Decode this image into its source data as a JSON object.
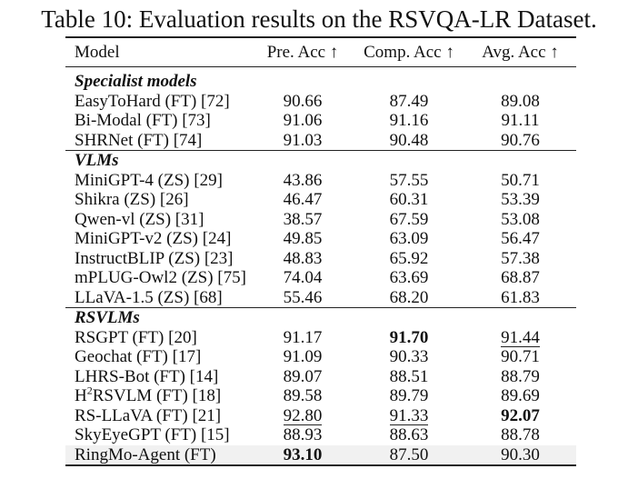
{
  "title": "Table 10: Evaluation results on the RSVQA-LR Dataset.",
  "columns": [
    "Model",
    "Pre. Acc ↑",
    "Comp. Acc ↑",
    "Avg. Acc ↑"
  ],
  "sections": [
    {
      "name": "Specialist models",
      "rows": [
        {
          "model": "EasyToHard (FT) [72]",
          "values": [
            "90.66",
            "87.49",
            "89.08"
          ]
        },
        {
          "model": "Bi-Modal (FT) [73]",
          "values": [
            "91.06",
            "91.16",
            "91.11"
          ]
        },
        {
          "model": "SHRNet (FT) [74]",
          "values": [
            "91.03",
            "90.48",
            "90.76"
          ]
        }
      ]
    },
    {
      "name": "VLMs",
      "rows": [
        {
          "model": "MiniGPT-4 (ZS) [29]",
          "values": [
            "43.86",
            "57.55",
            "50.71"
          ]
        },
        {
          "model": "Shikra (ZS) [26]",
          "values": [
            "46.47",
            "60.31",
            "53.39"
          ]
        },
        {
          "model": "Qwen-vl (ZS) [31]",
          "values": [
            "38.57",
            "67.59",
            "53.08"
          ]
        },
        {
          "model": "MiniGPT-v2 (ZS) [24]",
          "values": [
            "49.85",
            "63.09",
            "56.47"
          ]
        },
        {
          "model": "InstructBLIP (ZS) [23]",
          "values": [
            "48.83",
            "65.92",
            "57.38"
          ]
        },
        {
          "model": "mPLUG-Owl2 (ZS) [75]",
          "values": [
            "74.04",
            "63.69",
            "68.87"
          ]
        },
        {
          "model": "LLaVA-1.5 (ZS) [68]",
          "values": [
            "55.46",
            "68.20",
            "61.83"
          ]
        }
      ]
    },
    {
      "name": "RSVLMs",
      "rows": [
        {
          "model": "RSGPT (FT) [20]",
          "values": [
            "91.17",
            "91.70",
            "91.44"
          ],
          "bold": [
            1
          ],
          "underline": [
            2
          ]
        },
        {
          "model": "Geochat (FT) [17]",
          "values": [
            "91.09",
            "90.33",
            "90.71"
          ]
        },
        {
          "model": "LHRS-Bot (FT) [14]",
          "values": [
            "89.07",
            "88.51",
            "88.79"
          ]
        },
        {
          "model": "RSVLM (FT) [18]",
          "prefix": "H",
          "sup": "2",
          "values": [
            "89.58",
            "89.79",
            "89.69"
          ]
        },
        {
          "model": "RS-LLaVA (FT) [21]",
          "values": [
            "92.80",
            "91.33",
            "92.07"
          ],
          "bold": [
            2
          ],
          "underline": [
            0,
            1
          ]
        },
        {
          "model": "SkyEyeGPT (FT) [15]",
          "values": [
            "88.93",
            "88.63",
            "88.78"
          ]
        },
        {
          "model": "RingMo-Agent (FT)",
          "values": [
            "93.10",
            "87.50",
            "90.30"
          ],
          "bold": [
            0
          ],
          "highlight": true
        }
      ]
    }
  ]
}
